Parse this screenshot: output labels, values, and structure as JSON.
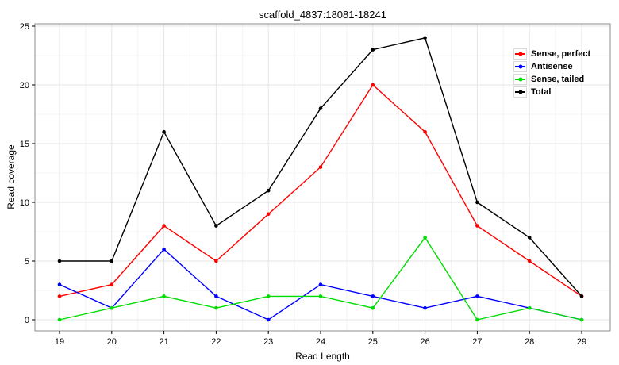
{
  "chart_data": {
    "type": "line",
    "title": "scaffold_4837:18081-18241",
    "xlabel": "Read Length",
    "ylabel": "Read coverage",
    "x": [
      19,
      20,
      21,
      22,
      23,
      24,
      25,
      26,
      27,
      28,
      29
    ],
    "xticks": [
      19,
      20,
      21,
      22,
      23,
      24,
      25,
      26,
      27,
      28,
      29
    ],
    "yticks": [
      0,
      5,
      10,
      15,
      20,
      25
    ],
    "ylim": [
      -1,
      25.2
    ],
    "xlim": [
      18.5,
      29.55
    ],
    "grid": true,
    "legend_position": "top-right",
    "panel_border_color": "#8c8c8c",
    "grid_major_color": "#e5e5e5",
    "grid_minor_color": "#f4f4f4",
    "series": [
      {
        "name": "Sense, perfect",
        "color": "#ff0000",
        "values": [
          2,
          3,
          8,
          5,
          9,
          13,
          20,
          16,
          8,
          5,
          2
        ]
      },
      {
        "name": "Antisense",
        "color": "#0000ff",
        "values": [
          3,
          1,
          6,
          2,
          0,
          3,
          2,
          1,
          2,
          1,
          0
        ]
      },
      {
        "name": "Sense, tailed",
        "color": "#00dd00",
        "values": [
          0,
          1,
          2,
          1,
          2,
          2,
          1,
          7,
          0,
          1,
          0
        ]
      },
      {
        "name": "Total",
        "color": "#000000",
        "values": [
          5,
          5,
          16,
          8,
          11,
          18,
          23,
          24,
          10,
          7,
          2
        ]
      }
    ]
  }
}
